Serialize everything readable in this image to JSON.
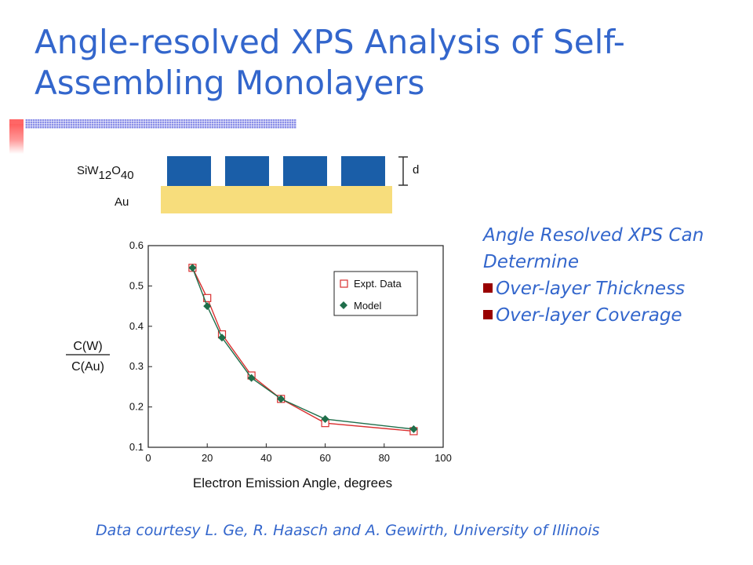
{
  "slide": {
    "title": "Angle-resolved XPS Analysis of Self-Assembling Monolayers",
    "side_heading_line1": "Angle Resolved XPS Can",
    "side_heading_line2": "Determine",
    "bullets": [
      "Over-layer Thickness",
      "Over-layer Coverage"
    ],
    "footer": "Data courtesy L. Ge, R. Haasch and A. Gewirth, University of Illinois",
    "colors": {
      "title": "#3366cc",
      "bullet": "#990000",
      "block": "#1a5ea8",
      "gold": "#f7dd7c"
    }
  },
  "schematic": {
    "overlayer_prefix": "SiW",
    "overlayer_sub1": "12",
    "overlayer_mid": "O",
    "overlayer_sub2": "40",
    "substrate_label": "Au",
    "thickness_label": "d",
    "block_count": 4
  },
  "chart_data": {
    "type": "line",
    "xlabel": "Electron Emission Angle, degrees",
    "ylabel_numerator": "C(W)",
    "ylabel_denominator": "C(Au)",
    "xlim": [
      0,
      100
    ],
    "ylim": [
      0.1,
      0.6
    ],
    "xticks": [
      0,
      20,
      40,
      60,
      80,
      100
    ],
    "yticks": [
      0.1,
      0.2,
      0.3,
      0.4,
      0.5,
      0.6
    ],
    "legend_position": "top-right",
    "series": [
      {
        "name": "Expt. Data",
        "marker": "open-square",
        "color": "#d93030",
        "x": [
          15,
          20,
          25,
          35,
          45,
          60,
          90
        ],
        "y": [
          0.545,
          0.47,
          0.38,
          0.278,
          0.22,
          0.16,
          0.14
        ]
      },
      {
        "name": "Model",
        "marker": "filled-diamond",
        "color": "#1f6e4a",
        "x": [
          15,
          20,
          25,
          35,
          45,
          60,
          90
        ],
        "y": [
          0.545,
          0.45,
          0.372,
          0.272,
          0.22,
          0.17,
          0.145
        ]
      }
    ]
  }
}
